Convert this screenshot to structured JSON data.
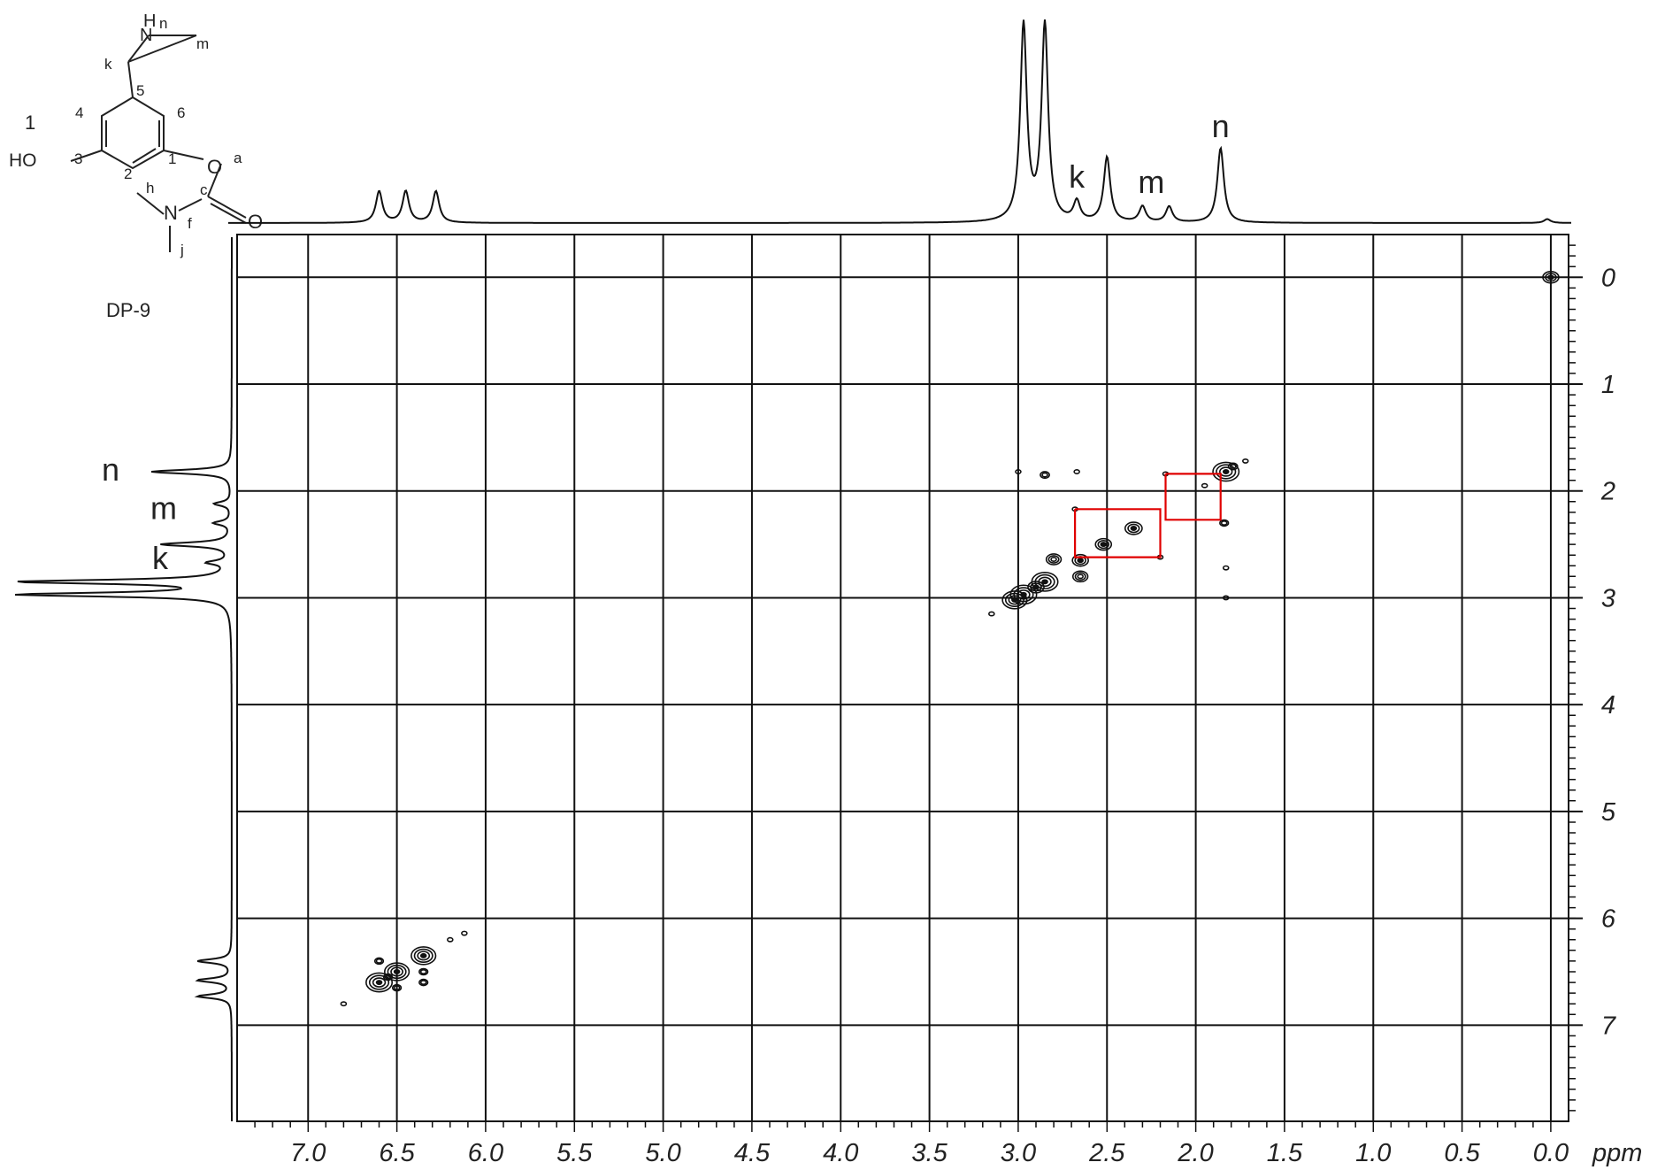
{
  "chart_data": {
    "type": "2d-nmr-cosy",
    "compound_label": "DP-9",
    "structure_number": "1",
    "structure_atom_labels": [
      "HN",
      "n",
      "m",
      "k",
      "5",
      "4",
      "6",
      "3",
      "1",
      "2",
      "HO",
      "O",
      "a",
      "c",
      "O",
      "h",
      "N",
      "f",
      "j"
    ],
    "x_unit": "ppm",
    "x_range": [
      7.4,
      -0.1
    ],
    "x_ticks": [
      "7.0",
      "6.5",
      "6.0",
      "5.5",
      "5.0",
      "4.5",
      "4.0",
      "3.5",
      "3.0",
      "2.5",
      "2.0",
      "1.5",
      "1.0",
      "0.5",
      "0.0"
    ],
    "x_tick_values": [
      7.0,
      6.5,
      6.0,
      5.5,
      5.0,
      4.5,
      4.0,
      3.5,
      3.0,
      2.5,
      2.0,
      1.5,
      1.0,
      0.5,
      0.0
    ],
    "y_range": [
      -0.4,
      7.9
    ],
    "y_ticks": [
      "0",
      "1",
      "2",
      "3",
      "4",
      "5",
      "6",
      "7"
    ],
    "y_tick_values": [
      0,
      1,
      2,
      3,
      4,
      5,
      6,
      7
    ],
    "grid": true,
    "top_spectrum": {
      "peaks": [
        {
          "ppm": 6.6,
          "height": 0.16
        },
        {
          "ppm": 6.45,
          "height": 0.16
        },
        {
          "ppm": 6.28,
          "height": 0.16
        },
        {
          "ppm": 2.97,
          "height": 1.0
        },
        {
          "ppm": 2.85,
          "height": 1.0
        },
        {
          "ppm": 2.67,
          "height": 0.1
        },
        {
          "ppm": 2.5,
          "height": 0.33
        },
        {
          "ppm": 2.3,
          "height": 0.08
        },
        {
          "ppm": 2.15,
          "height": 0.08
        },
        {
          "ppm": 1.86,
          "height": 0.38
        },
        {
          "ppm": 0.02,
          "height": 0.02
        }
      ],
      "labels": [
        {
          "text": "k",
          "ppm": 2.67
        },
        {
          "text": "m",
          "ppm": 2.25
        },
        {
          "text": "n",
          "ppm": 1.86
        }
      ]
    },
    "left_spectrum": {
      "peaks": [
        {
          "ppm": 1.82,
          "height": 0.38
        },
        {
          "ppm": 2.12,
          "height": 0.08
        },
        {
          "ppm": 2.3,
          "height": 0.08
        },
        {
          "ppm": 2.5,
          "height": 0.33
        },
        {
          "ppm": 2.67,
          "height": 0.1
        },
        {
          "ppm": 2.85,
          "height": 1.0
        },
        {
          "ppm": 2.97,
          "height": 1.0
        },
        {
          "ppm": 6.4,
          "height": 0.16
        },
        {
          "ppm": 6.58,
          "height": 0.16
        },
        {
          "ppm": 6.73,
          "height": 0.16
        }
      ],
      "labels": [
        {
          "text": "n",
          "ppm": 1.82
        },
        {
          "text": "m",
          "ppm": 2.18
        },
        {
          "text": "k",
          "ppm": 2.65
        }
      ]
    },
    "cross_peaks": [
      {
        "x": 0.0,
        "y": 0.0,
        "size": 1.0
      },
      {
        "x": 1.83,
        "y": 1.82,
        "size": 1.3
      },
      {
        "x": 1.72,
        "y": 1.72,
        "size": 0.4
      },
      {
        "x": 1.79,
        "y": 1.77,
        "size": 0.7
      },
      {
        "x": 2.35,
        "y": 2.35,
        "size": 1.1
      },
      {
        "x": 2.52,
        "y": 2.5,
        "size": 1.0
      },
      {
        "x": 2.65,
        "y": 2.65,
        "size": 1.0
      },
      {
        "x": 2.8,
        "y": 2.64,
        "size": 0.9
      },
      {
        "x": 2.65,
        "y": 2.8,
        "size": 0.9
      },
      {
        "x": 2.85,
        "y": 2.85,
        "size": 1.3
      },
      {
        "x": 2.97,
        "y": 2.97,
        "size": 1.3
      },
      {
        "x": 3.02,
        "y": 3.02,
        "size": 1.2
      },
      {
        "x": 2.9,
        "y": 2.9,
        "size": 1.0
      },
      {
        "x": 3.15,
        "y": 3.15,
        "size": 0.4
      },
      {
        "x": 2.85,
        "y": 1.85,
        "size": 0.7
      },
      {
        "x": 1.84,
        "y": 2.3,
        "size": 0.6
      },
      {
        "x": 2.68,
        "y": 2.17,
        "size": 0.4
      },
      {
        "x": 2.17,
        "y": 1.84,
        "size": 0.4
      },
      {
        "x": 2.2,
        "y": 2.62,
        "size": 0.4
      },
      {
        "x": 1.95,
        "y": 1.95,
        "size": 0.4
      },
      {
        "x": 3.0,
        "y": 1.82,
        "size": 0.3
      },
      {
        "x": 2.67,
        "y": 1.82,
        "size": 0.3
      },
      {
        "x": 1.83,
        "y": 2.72,
        "size": 0.3
      },
      {
        "x": 1.83,
        "y": 3.0,
        "size": 0.3
      },
      {
        "x": 6.6,
        "y": 6.6,
        "size": 1.3
      },
      {
        "x": 6.5,
        "y": 6.5,
        "size": 1.2
      },
      {
        "x": 6.35,
        "y": 6.35,
        "size": 1.2
      },
      {
        "x": 6.55,
        "y": 6.55,
        "size": 0.6
      },
      {
        "x": 6.6,
        "y": 6.4,
        "size": 0.5
      },
      {
        "x": 6.35,
        "y": 6.6,
        "size": 0.5
      },
      {
        "x": 6.5,
        "y": 6.65,
        "size": 0.5
      },
      {
        "x": 6.35,
        "y": 6.5,
        "size": 0.5
      },
      {
        "x": 6.2,
        "y": 6.2,
        "size": 0.4
      },
      {
        "x": 6.8,
        "y": 6.8,
        "size": 0.3
      },
      {
        "x": 6.12,
        "y": 6.14,
        "size": 0.2
      }
    ],
    "correlation_paths": [
      [
        [
          2.68,
          2.17
        ],
        [
          2.2,
          2.17
        ],
        [
          2.2,
          2.62
        ],
        [
          2.68,
          2.62
        ],
        [
          2.68,
          2.17
        ]
      ],
      [
        [
          2.17,
          1.84
        ],
        [
          1.86,
          1.84
        ],
        [
          1.86,
          2.27
        ],
        [
          2.17,
          2.27
        ],
        [
          2.17,
          1.84
        ]
      ]
    ],
    "colors": {
      "correlation_path": "#e00000",
      "ink": "#111111",
      "grid": "#111111"
    }
  }
}
